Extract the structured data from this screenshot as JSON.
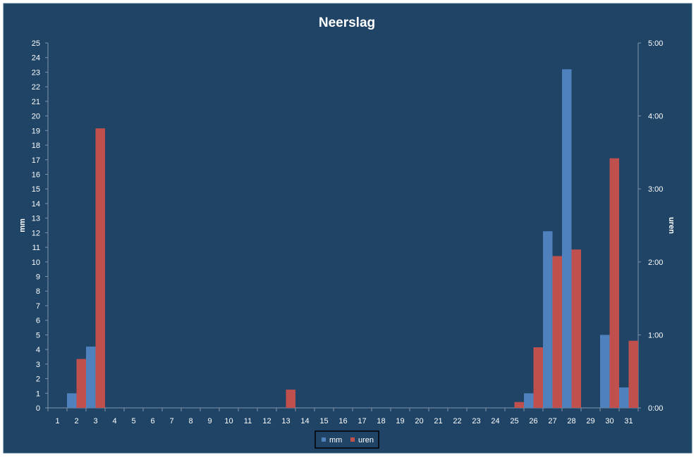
{
  "chart_data": {
    "type": "bar",
    "title": "Neerslag",
    "xlabel": "",
    "ylabel": "mm",
    "y2label": "uren",
    "categories": [
      "1",
      "2",
      "3",
      "4",
      "5",
      "6",
      "7",
      "8",
      "9",
      "10",
      "11",
      "12",
      "13",
      "14",
      "15",
      "16",
      "17",
      "18",
      "19",
      "20",
      "21",
      "22",
      "23",
      "24",
      "25",
      "26",
      "27",
      "28",
      "29",
      "30",
      "31"
    ],
    "ylim": [
      0,
      25
    ],
    "yticks": [
      "0",
      "1",
      "2",
      "3",
      "4",
      "5",
      "6",
      "7",
      "8",
      "9",
      "10",
      "11",
      "12",
      "13",
      "14",
      "15",
      "16",
      "17",
      "18",
      "19",
      "20",
      "21",
      "22",
      "23",
      "24",
      "25"
    ],
    "y2lim_hours": [
      0,
      5
    ],
    "y2ticks": [
      "0:00",
      "1:00",
      "2:00",
      "3:00",
      "4:00",
      "5:00"
    ],
    "series": [
      {
        "name": "mm",
        "axis": "left",
        "color": "#4f81bd",
        "values": [
          0,
          1.0,
          4.2,
          0,
          0,
          0,
          0,
          0,
          0,
          0,
          0,
          0,
          0,
          0,
          0,
          0,
          0,
          0,
          0,
          0,
          0,
          0,
          0,
          0,
          0,
          1.0,
          12.1,
          23.2,
          0,
          5.0,
          1.4
        ]
      },
      {
        "name": "uren",
        "axis": "right",
        "color": "#c0504d",
        "values": [
          0,
          0.67,
          3.83,
          0,
          0,
          0,
          0,
          0,
          0,
          0,
          0,
          0,
          0.25,
          0,
          0,
          0,
          0,
          0,
          0,
          0,
          0,
          0,
          0,
          0,
          0.08,
          0.83,
          2.08,
          2.17,
          0,
          3.42,
          0.92
        ]
      }
    ],
    "legend_position": "bottom",
    "grid": false
  },
  "colors": {
    "background": "#1f4466",
    "frame": "#3a6080",
    "text": "#ffffff",
    "axis": "#7f95aa"
  }
}
